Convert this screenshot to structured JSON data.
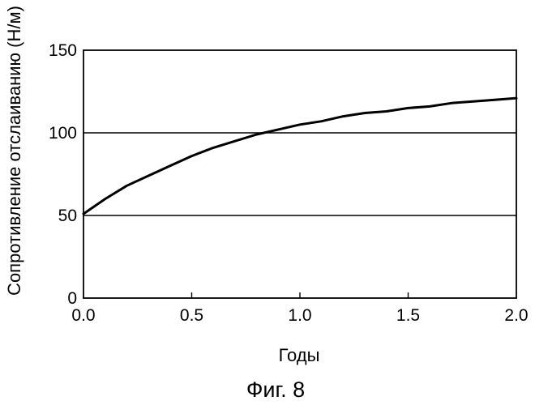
{
  "chart_data": {
    "type": "line",
    "title": "",
    "xlabel": "Годы",
    "ylabel": "Сопротивление отслаиванию (Н/м)",
    "caption": "Фиг. 8",
    "xlim": [
      0.0,
      2.0
    ],
    "ylim": [
      0,
      150
    ],
    "x_ticks": [
      "0.0",
      "0.5",
      "1.0",
      "1.5",
      "2.0"
    ],
    "y_ticks": [
      "0",
      "50",
      "100",
      "150"
    ],
    "grid": "horizontal",
    "legend": "none",
    "colors": {
      "line": "#000000",
      "frame": "#000000",
      "grid": "#000000"
    },
    "series": [
      {
        "x": [
          0.0,
          0.1,
          0.2,
          0.3,
          0.4,
          0.5,
          0.6,
          0.7,
          0.8,
          0.9,
          1.0,
          1.1,
          1.2,
          1.3,
          1.4,
          1.5,
          1.6,
          1.7,
          1.8,
          1.9,
          2.0
        ],
        "y": [
          51,
          60,
          68,
          74,
          80,
          86,
          91,
          95,
          99,
          102,
          105,
          107,
          110,
          112,
          113,
          115,
          116,
          118,
          119,
          120,
          121
        ]
      }
    ]
  }
}
